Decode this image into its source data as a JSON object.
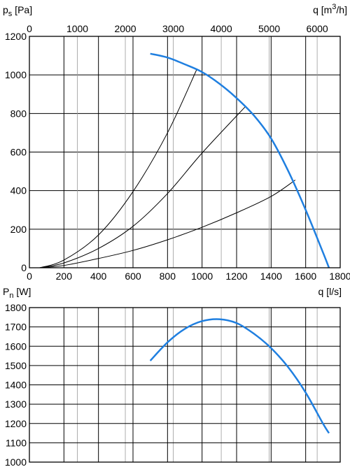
{
  "chart_data": [
    {
      "type": "line",
      "ylabel": {
        "symbol": "p",
        "sub": "s",
        "unit": " [Pa]"
      },
      "xlabel": "q [l/s]",
      "x2label": {
        "text": "q [m",
        "sup": "3",
        "end": "/h]"
      },
      "xlim": [
        0,
        1800
      ],
      "ylim": [
        0,
        1200
      ],
      "x_ticks": [
        0,
        200,
        400,
        600,
        800,
        1000,
        1200,
        1400,
        1600,
        1800
      ],
      "x2_ticks": [
        0,
        1000,
        2000,
        3000,
        4000,
        5000,
        6000
      ],
      "x2_factor": 3.6,
      "y_ticks": [
        0,
        200,
        400,
        600,
        800,
        1000,
        1200
      ],
      "grid": true,
      "fan_curve": {
        "color": "#1f7fe0",
        "points": [
          [
            700,
            1110
          ],
          [
            800,
            1090
          ],
          [
            900,
            1055
          ],
          [
            1000,
            1015
          ],
          [
            1100,
            955
          ],
          [
            1200,
            880
          ],
          [
            1300,
            790
          ],
          [
            1400,
            670
          ],
          [
            1500,
            500
          ],
          [
            1600,
            300
          ],
          [
            1700,
            80
          ],
          [
            1735,
            0
          ]
        ]
      },
      "system_curves": [
        {
          "points": [
            [
              60,
              0
            ],
            [
              200,
              40
            ],
            [
              400,
              170
            ],
            [
              600,
              395
            ],
            [
              800,
              700
            ],
            [
              970,
              1030
            ]
          ]
        },
        {
          "points": [
            [
              60,
              0
            ],
            [
              200,
              25
            ],
            [
              400,
              100
            ],
            [
              600,
              215
            ],
            [
              800,
              385
            ],
            [
              1000,
              595
            ],
            [
              1250,
              835
            ]
          ]
        },
        {
          "points": [
            [
              60,
              0
            ],
            [
              200,
              12
            ],
            [
              400,
              48
            ],
            [
              600,
              90
            ],
            [
              800,
              145
            ],
            [
              1000,
              210
            ],
            [
              1200,
              285
            ],
            [
              1400,
              370
            ],
            [
              1540,
              455
            ]
          ]
        }
      ]
    },
    {
      "type": "line",
      "ylabel": {
        "symbol": "P",
        "sub": "n",
        "unit": " [W]"
      },
      "ylim": [
        1000,
        1800
      ],
      "y_ticks": [
        1000,
        1100,
        1200,
        1300,
        1400,
        1500,
        1600,
        1700,
        1800
      ],
      "xlim": [
        0,
        1800
      ],
      "grid": true,
      "power_curve": {
        "color": "#1f7fe0",
        "points": [
          [
            700,
            1525
          ],
          [
            800,
            1620
          ],
          [
            900,
            1690
          ],
          [
            1000,
            1730
          ],
          [
            1100,
            1740
          ],
          [
            1200,
            1720
          ],
          [
            1300,
            1665
          ],
          [
            1400,
            1590
          ],
          [
            1500,
            1490
          ],
          [
            1600,
            1360
          ],
          [
            1700,
            1200
          ],
          [
            1735,
            1150
          ]
        ]
      }
    }
  ]
}
